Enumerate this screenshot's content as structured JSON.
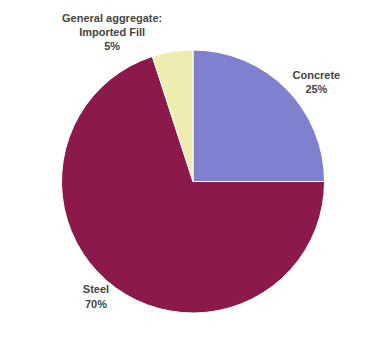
{
  "chart_data": {
    "type": "pie",
    "categories": [
      "Concrete",
      "Steel",
      "General aggregate:\nImported Fill"
    ],
    "values": [
      25,
      70,
      5
    ],
    "value_labels": [
      "25%",
      "70%",
      "5%"
    ],
    "colors": [
      "#8080d0",
      "#8b1a4a",
      "#eeedb0"
    ],
    "data_labels": true
  }
}
